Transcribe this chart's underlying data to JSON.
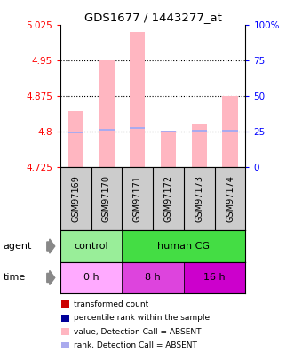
{
  "title": "GDS1677 / 1443277_at",
  "samples": [
    "GSM97169",
    "GSM97170",
    "GSM97171",
    "GSM97172",
    "GSM97173",
    "GSM97174"
  ],
  "bar_values": [
    4.843,
    4.95,
    5.01,
    4.8,
    4.818,
    4.875
  ],
  "rank_values": [
    4.799,
    4.805,
    4.808,
    4.8,
    4.803,
    4.802
  ],
  "ylim_left": [
    4.725,
    5.025
  ],
  "ylim_right": [
    0,
    100
  ],
  "yticks_left": [
    4.725,
    4.8,
    4.875,
    4.95,
    5.025
  ],
  "yticks_right": [
    0,
    25,
    50,
    75,
    100
  ],
  "yticklabels_left": [
    "4.725",
    "4.8",
    "4.875",
    "4.95",
    "5.025"
  ],
  "yticklabels_right": [
    "0",
    "25",
    "50",
    "75",
    "100%"
  ],
  "bar_color": "#FFB6C1",
  "rank_color": "#AAAAEE",
  "agent_labels": [
    {
      "label": "control",
      "span": [
        0,
        2
      ],
      "color": "#99EE99"
    },
    {
      "label": "human CG",
      "span": [
        2,
        6
      ],
      "color": "#44DD44"
    }
  ],
  "time_labels": [
    {
      "label": "0 h",
      "span": [
        0,
        2
      ],
      "color": "#FFAAFF"
    },
    {
      "label": "8 h",
      "span": [
        2,
        4
      ],
      "color": "#DD44DD"
    },
    {
      "label": "16 h",
      "span": [
        4,
        6
      ],
      "color": "#CC00CC"
    }
  ],
  "legend_colors": [
    "#CC0000",
    "#000099",
    "#FFB6C1",
    "#AAAAEE"
  ],
  "legend_labels": [
    "transformed count",
    "percentile rank within the sample",
    "value, Detection Call = ABSENT",
    "rank, Detection Call = ABSENT"
  ],
  "base": 4.725,
  "sample_bg": "#CCCCCC"
}
